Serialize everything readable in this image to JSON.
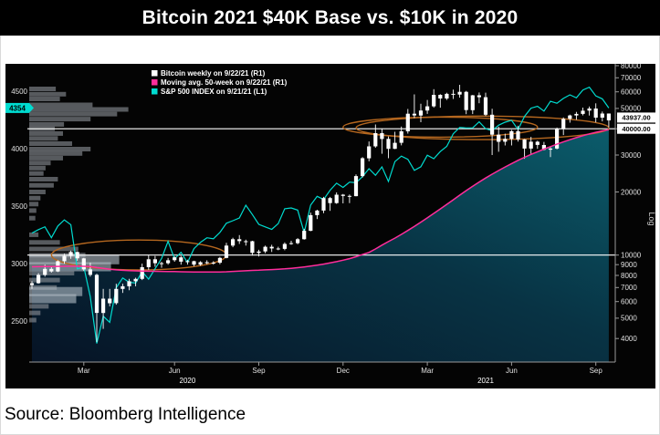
{
  "title": "Bitcoin 2021 $40K Base vs. $10K in 2020",
  "source": "Source: Bloomberg Intelligence",
  "chart_data": {
    "type": "candlestick",
    "title": "Bitcoin 2021 $40K Base vs. $10K in 2020",
    "legend": [
      {
        "label": "Bitcoin weekly on 9/22/21 (R1)",
        "color": "#ffffff"
      },
      {
        "label": "Moving avg. 50-week on 9/22/21 (R1)",
        "color": "#ff2d9b"
      },
      {
        "label": "S&P 500 INDEX on 9/21/21 (L1)",
        "color": "#00dcd0"
      }
    ],
    "left_axis": {
      "ticks": [
        4500,
        4000,
        3500,
        3000,
        2500
      ],
      "badge": {
        "label": "4354",
        "value": 4354
      }
    },
    "right_axis": {
      "scale": "log",
      "label": "Log",
      "ticks": [
        80000,
        70000,
        60000,
        50000,
        40000,
        30000,
        20000,
        10000,
        9000,
        8000,
        7000,
        6000,
        5000,
        4000
      ],
      "badges": [
        {
          "label": "43937.00",
          "price": 43937
        },
        {
          "label": "40000.00",
          "price": 40000
        }
      ]
    },
    "x_axis": {
      "ticks": [
        {
          "label": "Mar",
          "week": 8
        },
        {
          "label": "Jun",
          "week": 22
        },
        {
          "label": "Sep",
          "week": 35
        },
        {
          "label": "Dec",
          "week": 48
        },
        {
          "label": "Mar",
          "week": 61
        },
        {
          "label": "Jun",
          "week": 74
        },
        {
          "label": "Sep",
          "week": 87
        }
      ],
      "years": [
        {
          "label": "2020",
          "week": 24
        },
        {
          "label": "2021",
          "week": 70
        }
      ]
    },
    "hlines": [
      40000,
      10000
    ],
    "ellipses": [
      {
        "week_start": 3,
        "week_end": 30,
        "price_high": 11800,
        "price_low": 8500
      },
      {
        "week_start": 48,
        "week_end": 78,
        "price_high": 45500,
        "price_low": 36500
      },
      {
        "week_start": 50,
        "week_end": 89,
        "price_high": 46000,
        "price_low": 35500
      }
    ],
    "series": {
      "btc_weekly_ohlc": [
        [
          7200,
          7500,
          6900,
          7350
        ],
        [
          7350,
          8200,
          7300,
          8050
        ],
        [
          8050,
          9000,
          7900,
          8600
        ],
        [
          8600,
          8750,
          8250,
          8350
        ],
        [
          8350,
          9450,
          8300,
          9350
        ],
        [
          9350,
          10150,
          9100,
          9900
        ],
        [
          9900,
          10500,
          9600,
          10350
        ],
        [
          10350,
          10400,
          9400,
          9650
        ],
        [
          9650,
          9700,
          8400,
          8550
        ],
        [
          8550,
          9200,
          7900,
          8050
        ],
        [
          8050,
          8150,
          3850,
          5300
        ],
        [
          5300,
          6900,
          4450,
          6200
        ],
        [
          6200,
          6900,
          5700,
          5900
        ],
        [
          5900,
          7300,
          5800,
          6900
        ],
        [
          6900,
          7300,
          6600,
          7100
        ],
        [
          7100,
          7700,
          6800,
          7500
        ],
        [
          7500,
          7800,
          7100,
          7700
        ],
        [
          7700,
          9100,
          7600,
          8750
        ],
        [
          8750,
          10000,
          8500,
          9550
        ],
        [
          9550,
          9900,
          8800,
          9150
        ],
        [
          9150,
          9300,
          8700,
          9150
        ],
        [
          9150,
          9700,
          9000,
          9450
        ],
        [
          9450,
          9850,
          9300,
          9750
        ],
        [
          9750,
          9900,
          9000,
          9300
        ],
        [
          9300,
          9500,
          9000,
          9350
        ],
        [
          9350,
          9400,
          8850,
          9000
        ],
        [
          9000,
          9350,
          8900,
          9250
        ],
        [
          9250,
          9450,
          9050,
          9150
        ],
        [
          9150,
          9350,
          9000,
          9200
        ],
        [
          9200,
          9800,
          9050,
          9700
        ],
        [
          9700,
          11450,
          9650,
          11100
        ],
        [
          11100,
          12100,
          10900,
          11900
        ],
        [
          11900,
          12450,
          11300,
          11650
        ],
        [
          11650,
          11850,
          11100,
          11650
        ],
        [
          11650,
          11700,
          9950,
          10250
        ],
        [
          10250,
          10600,
          9850,
          10400
        ],
        [
          10400,
          11100,
          10200,
          10950
        ],
        [
          10950,
          11200,
          10350,
          10750
        ],
        [
          10750,
          10950,
          10550,
          10700
        ],
        [
          10700,
          11500,
          10550,
          11300
        ],
        [
          11300,
          11700,
          11200,
          11400
        ],
        [
          11400,
          12050,
          11250,
          11900
        ],
        [
          11900,
          13350,
          11850,
          13050
        ],
        [
          13050,
          15950,
          13000,
          15500
        ],
        [
          15500,
          16450,
          14850,
          16300
        ],
        [
          16300,
          18950,
          15850,
          18700
        ],
        [
          18700,
          18950,
          16250,
          17700
        ],
        [
          17700,
          19900,
          17550,
          19400
        ],
        [
          19400,
          19550,
          17650,
          19150
        ],
        [
          19150,
          19450,
          17700,
          19100
        ],
        [
          19100,
          24250,
          19050,
          23800
        ],
        [
          23800,
          29300,
          23450,
          28950
        ],
        [
          28950,
          34800,
          28000,
          33000
        ],
        [
          33000,
          41950,
          32500,
          38150
        ],
        [
          38150,
          40100,
          30400,
          35800
        ],
        [
          35800,
          36800,
          28950,
          32100
        ],
        [
          32100,
          38700,
          32000,
          34300
        ],
        [
          34300,
          41000,
          33350,
          38900
        ],
        [
          38900,
          49700,
          37950,
          47200
        ],
        [
          47200,
          58350,
          45000,
          46300
        ],
        [
          46300,
          52700,
          43000,
          48900
        ],
        [
          48900,
          54900,
          47100,
          51200
        ],
        [
          51200,
          61800,
          50500,
          58100
        ],
        [
          58100,
          58500,
          50450,
          55800
        ],
        [
          55800,
          59400,
          54900,
          58700
        ],
        [
          58700,
          61500,
          55500,
          58200
        ],
        [
          58200,
          64850,
          56300,
          60000
        ],
        [
          60000,
          60600,
          46950,
          49100
        ],
        [
          49100,
          58000,
          47000,
          57800
        ],
        [
          57800,
          59600,
          52950,
          56600
        ],
        [
          56600,
          59500,
          46000,
          46700
        ],
        [
          46700,
          49800,
          30000,
          37500
        ],
        [
          37500,
          40900,
          31100,
          34700
        ],
        [
          34700,
          37900,
          33300,
          35800
        ],
        [
          35800,
          39500,
          33300,
          39000
        ],
        [
          39000,
          41350,
          34750,
          35600
        ],
        [
          35600,
          35750,
          28800,
          32200
        ],
        [
          32200,
          36600,
          30150,
          34700
        ],
        [
          34700,
          35100,
          32100,
          33500
        ],
        [
          33500,
          34650,
          31550,
          31800
        ],
        [
          31800,
          32800,
          29300,
          32200
        ],
        [
          32200,
          40550,
          31900,
          39850
        ],
        [
          39850,
          45300,
          37350,
          44600
        ],
        [
          44600,
          46750,
          42800,
          46300
        ],
        [
          46300,
          48150,
          44200,
          47100
        ],
        [
          47100,
          50500,
          46350,
          48800
        ],
        [
          48800,
          51100,
          46250,
          49950
        ],
        [
          49950,
          52900,
          42900,
          45200
        ],
        [
          45200,
          48350,
          43400,
          47300
        ],
        [
          47300,
          47350,
          40700,
          43900
        ]
      ],
      "ma50": [
        8800,
        8810,
        8820,
        8820,
        8830,
        8840,
        8850,
        8850,
        8840,
        8820,
        8720,
        8640,
        8560,
        8500,
        8460,
        8430,
        8410,
        8390,
        8380,
        8370,
        8360,
        8350,
        8340,
        8330,
        8320,
        8310,
        8300,
        8300,
        8300,
        8310,
        8330,
        8360,
        8390,
        8420,
        8450,
        8470,
        8500,
        8530,
        8560,
        8600,
        8650,
        8710,
        8780,
        8860,
        8950,
        9060,
        9180,
        9310,
        9460,
        9620,
        9820,
        10060,
        10300,
        10700,
        11150,
        11600,
        12050,
        12550,
        13100,
        13700,
        14350,
        15050,
        15800,
        16600,
        17450,
        18350,
        19300,
        20300,
        21300,
        22300,
        23300,
        24300,
        25300,
        26300,
        27300,
        28300,
        29250,
        30200,
        31100,
        32000,
        32900,
        33800,
        34650,
        35500,
        36300,
        37100,
        37850,
        38500,
        39100,
        39600
      ],
      "sp500": [
        3265,
        3295,
        3320,
        3225,
        3327,
        3380,
        3338,
        2954,
        2972,
        2711,
        2305,
        2541,
        2489,
        2790,
        2875,
        2837,
        2830,
        2930,
        2864,
        2955,
        3044,
        3194,
        3041,
        3098,
        3009,
        3130,
        3185,
        3225,
        3216,
        3271,
        3351,
        3373,
        3397,
        3508,
        3427,
        3341,
        3319,
        3298,
        3348,
        3477,
        3484,
        3465,
        3270,
        3509,
        3585,
        3558,
        3638,
        3699,
        3663,
        3709,
        3703,
        3756,
        3825,
        3768,
        3841,
        3714,
        3887,
        3935,
        3907,
        3811,
        3842,
        3943,
        3913,
        3975,
        4020,
        4129,
        4185,
        4180,
        4181,
        4233,
        4174,
        4156,
        4204,
        4230,
        4247,
        4166,
        4281,
        4352,
        4369,
        4327,
        4412,
        4395,
        4437,
        4468,
        4442,
        4510,
        4535,
        4459,
        4433,
        4354
      ]
    },
    "volume_profile": [
      {
        "price": 62000,
        "rel": 0.26
      },
      {
        "price": 58500,
        "rel": 0.36
      },
      {
        "price": 55500,
        "rel": 0.3
      },
      {
        "price": 52000,
        "rel": 0.62
      },
      {
        "price": 49500,
        "rel": 0.97
      },
      {
        "price": 47000,
        "rel": 0.86
      },
      {
        "price": 44500,
        "rel": 0.6
      },
      {
        "price": 42000,
        "rel": 0.34
      },
      {
        "price": 40000,
        "rel": 0.25
      },
      {
        "price": 38000,
        "rel": 0.33
      },
      {
        "price": 36000,
        "rel": 0.28
      },
      {
        "price": 34000,
        "rel": 0.42
      },
      {
        "price": 32000,
        "rel": 0.6
      },
      {
        "price": 30500,
        "rel": 0.52
      },
      {
        "price": 29000,
        "rel": 0.33
      },
      {
        "price": 27500,
        "rel": 0.21
      },
      {
        "price": 26000,
        "rel": 0.16
      },
      {
        "price": 24500,
        "rel": 0.14
      },
      {
        "price": 23000,
        "rel": 0.28
      },
      {
        "price": 21500,
        "rel": 0.24
      },
      {
        "price": 20000,
        "rel": 0.16
      },
      {
        "price": 18700,
        "rel": 0.11
      },
      {
        "price": 17500,
        "rel": 0.09
      },
      {
        "price": 16300,
        "rel": 0.07
      },
      {
        "price": 15000,
        "rel": 0.06
      },
      {
        "price": 12500,
        "rel": 0.09
      },
      {
        "price": 11500,
        "rel": 0.3
      },
      {
        "price": 10700,
        "rel": 0.48
      },
      {
        "price": 10000,
        "rel": 0.55
      },
      {
        "price": 9500,
        "rel": 0.88,
        "light": true
      },
      {
        "price": 8800,
        "rel": 0.8,
        "light": true
      },
      {
        "price": 8200,
        "rel": 0.44
      },
      {
        "price": 7600,
        "rel": 0.3
      },
      {
        "price": 7000,
        "rel": 0.27
      },
      {
        "price": 6700,
        "rel": 0.52,
        "light": true
      },
      {
        "price": 6200,
        "rel": 0.46,
        "light": true
      },
      {
        "price": 5700,
        "rel": 0.19
      },
      {
        "price": 5300,
        "rel": 0.11
      },
      {
        "price": 4900,
        "rel": 0.07
      }
    ],
    "colors": {
      "candle": "#ffffff",
      "ma": "#ff2d9b",
      "sp500": "#00dcd0",
      "ellipse": "#b5671f",
      "volume": "#8a9096",
      "volume_light": "#aeb9c4",
      "axis": "#9a9a9a",
      "text": "#e0e0e0",
      "fill_dark": "#061325",
      "fill_mid": "#083344",
      "fill_bright": "#0b5c6b"
    }
  }
}
